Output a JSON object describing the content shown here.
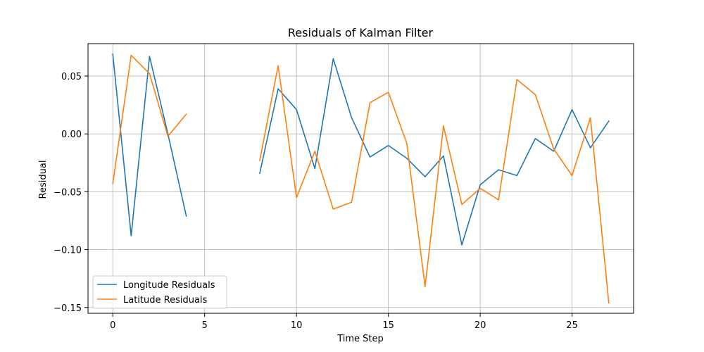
{
  "chart_data": {
    "type": "line",
    "title": "Residuals of Kalman Filter",
    "xlabel": "Time Step",
    "ylabel": "Residual",
    "xlim": [
      -1.35,
      28.35
    ],
    "ylim": [
      -0.155,
      0.078
    ],
    "xticks": [
      0,
      5,
      10,
      15,
      20,
      25
    ],
    "xtick_labels": [
      "0",
      "5",
      "10",
      "15",
      "20",
      "25"
    ],
    "yticks": [
      -0.15,
      -0.1,
      -0.05,
      0.0,
      0.05
    ],
    "ytick_labels": [
      "−0.15",
      "−0.10",
      "−0.05",
      "0.00",
      "0.05"
    ],
    "grid": true,
    "legend_position": "lower-left",
    "series": [
      {
        "name": "Longitude Residuals",
        "color": "#1f77b4",
        "x": [
          0,
          1,
          2,
          3,
          4,
          5,
          6,
          7,
          8,
          9,
          10,
          11,
          12,
          13,
          14,
          15,
          16,
          17,
          18,
          19,
          20,
          21,
          22,
          23,
          24,
          25,
          26,
          27
        ],
        "values": [
          0.069,
          -0.088,
          0.067,
          0.0,
          -0.071,
          null,
          null,
          null,
          -0.034,
          0.039,
          0.021,
          -0.03,
          0.065,
          0.014,
          -0.02,
          -0.01,
          -0.021,
          -0.037,
          -0.019,
          -0.096,
          -0.044,
          -0.031,
          -0.036,
          -0.004,
          -0.015,
          0.021,
          -0.012,
          0.011
        ]
      },
      {
        "name": "Latitude Residuals",
        "color": "#ff7f0e",
        "x": [
          0,
          1,
          2,
          3,
          4,
          5,
          6,
          7,
          8,
          9,
          10,
          11,
          12,
          13,
          14,
          15,
          16,
          17,
          18,
          19,
          20,
          21,
          22,
          23,
          24,
          25,
          26,
          27
        ],
        "values": [
          -0.043,
          0.068,
          0.052,
          -0.002,
          0.017,
          null,
          null,
          null,
          -0.023,
          0.059,
          -0.055,
          -0.015,
          -0.065,
          -0.059,
          0.027,
          0.036,
          -0.008,
          -0.132,
          0.007,
          -0.061,
          -0.047,
          -0.057,
          0.047,
          0.034,
          -0.013,
          -0.036,
          0.014,
          -0.146
        ]
      }
    ]
  }
}
